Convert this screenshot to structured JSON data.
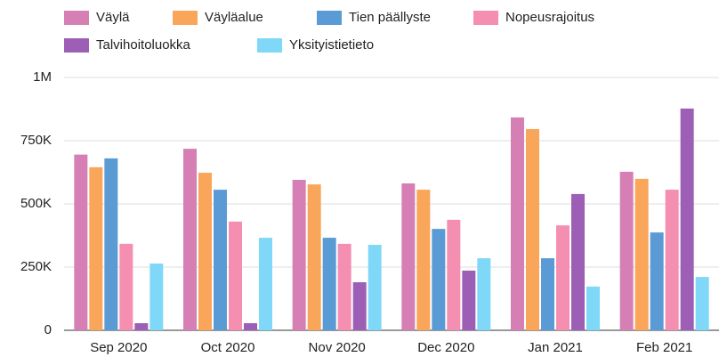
{
  "chart_data": {
    "type": "bar",
    "categories": [
      "Sep 2020",
      "Oct 2020",
      "Nov 2020",
      "Dec 2020",
      "Jan 2021",
      "Feb 2021"
    ],
    "series": [
      {
        "name": "Väylä",
        "color": "#d67fb5",
        "values": [
          695000,
          718000,
          595000,
          581000,
          842000,
          627000
        ]
      },
      {
        "name": "Väyläalue",
        "color": "#f9a65a",
        "values": [
          645000,
          623000,
          577000,
          556000,
          796000,
          599000
        ]
      },
      {
        "name": "Tien päällyste",
        "color": "#5b9bd5",
        "values": [
          680000,
          556000,
          366000,
          401000,
          285000,
          387000
        ]
      },
      {
        "name": "Nopeusrajoitus",
        "color": "#f48fb1",
        "values": [
          342000,
          430000,
          342000,
          437000,
          415000,
          556000
        ]
      },
      {
        "name": "Talvihoitoluokka",
        "color": "#9c5fb5",
        "values": [
          28000,
          28000,
          190000,
          236000,
          539000,
          877000
        ]
      },
      {
        "name": "Yksityistietieto",
        "color": "#80d8f8",
        "values": [
          264000,
          366000,
          338000,
          285000,
          173000,
          211000
        ]
      }
    ],
    "ylim": [
      0,
      1000000
    ],
    "yticks": [
      0,
      {
        "value": 250000,
        "label": "250K"
      },
      {
        "value": 500000,
        "label": "500K"
      },
      {
        "value": 750000,
        "label": "750K"
      },
      {
        "value": 1000000,
        "label": "1M"
      }
    ],
    "grid": true
  }
}
